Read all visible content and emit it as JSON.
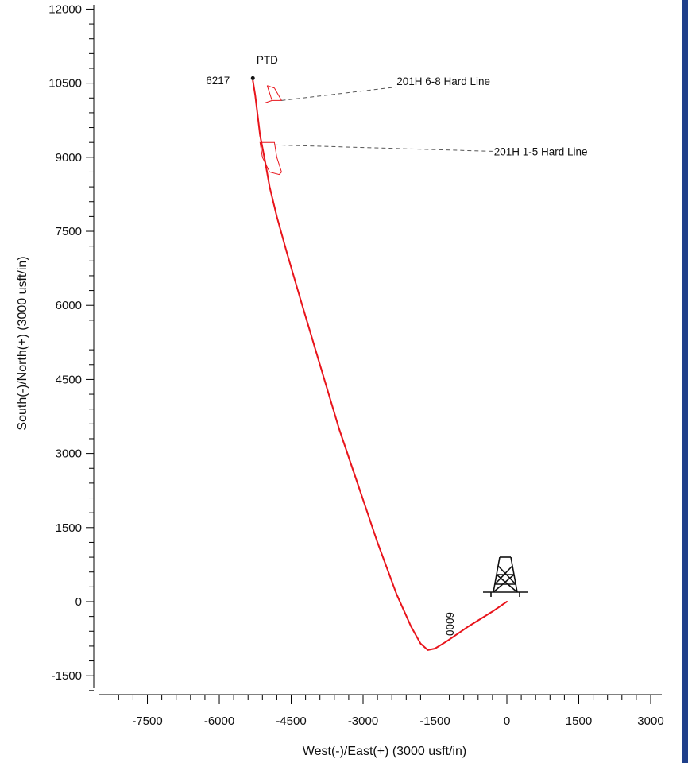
{
  "chart_data": {
    "type": "line",
    "title": "",
    "xlabel": "West(-)/East(+) (3000 usft/in)",
    "ylabel": "South(-)/North(+) (3000 usft/in)",
    "xlim": [
      -8300,
      3100
    ],
    "ylim": [
      -1800,
      12100
    ],
    "x_ticks": [
      -7500,
      -6000,
      -4500,
      -3000,
      -1500,
      0,
      1500,
      3000
    ],
    "y_ticks": [
      -1500,
      0,
      1500,
      3000,
      4500,
      6000,
      7500,
      9000,
      10500,
      12000
    ],
    "x_tick_labels": [
      "-7500",
      "-6000",
      "-4500",
      "-3000",
      "-1500",
      "0",
      "1500",
      "3000"
    ],
    "y_tick_labels": [
      "-1500",
      "0",
      "1500",
      "3000",
      "4500",
      "6000",
      "7500",
      "9000",
      "10500",
      "12000"
    ],
    "series": [
      {
        "color": "#e8141b",
        "x": [
          0,
          -300,
          -800,
          -1250,
          -1500,
          -1650,
          -1800,
          -2000,
          -2300,
          -2700,
          -3100,
          -3500,
          -3900,
          -4300,
          -4600,
          -4800,
          -4950,
          -5050,
          -5150,
          -5200,
          -5250,
          -5300
        ],
        "y": [
          0,
          -200,
          -500,
          -800,
          -950,
          -980,
          -850,
          -500,
          150,
          1200,
          2350,
          3500,
          4800,
          6100,
          7100,
          7800,
          8400,
          8950,
          9450,
          9850,
          10250,
          10550
        ]
      }
    ],
    "annotations": [
      {
        "text": "PTD",
        "x": -5000,
        "y": 10900
      },
      {
        "text": "6217",
        "x": -5780,
        "y": 10480
      },
      {
        "text": "6000",
        "x": -1350,
        "y": -450
      },
      {
        "text": "201H 6-8 Hard Line",
        "x": -2300,
        "y": 10460
      },
      {
        "text": "201H 1-5 Hard Line",
        "x": -270,
        "y": 9040
      }
    ],
    "hard_lines": [
      {
        "name": "201H 6-8 Hard Line",
        "x": [
          -5000,
          -4850,
          -4700,
          -4900,
          -5050,
          -4900,
          -5000
        ],
        "y": [
          10450,
          10400,
          10150,
          10150,
          10100,
          10150,
          10450
        ]
      },
      {
        "name": "201H 1-5 Hard Line",
        "x": [
          -5100,
          -4850,
          -4800,
          -4700,
          -4750,
          -4950,
          -5100,
          -5150,
          -5100
        ],
        "y": [
          9300,
          9300,
          9000,
          8700,
          8650,
          8700,
          9000,
          9300,
          9300
        ]
      }
    ],
    "ptd_point": {
      "x": -5300,
      "y": 10600
    },
    "surface_location": {
      "x": 0,
      "y": 0
    },
    "grid": false,
    "legend": "none"
  }
}
